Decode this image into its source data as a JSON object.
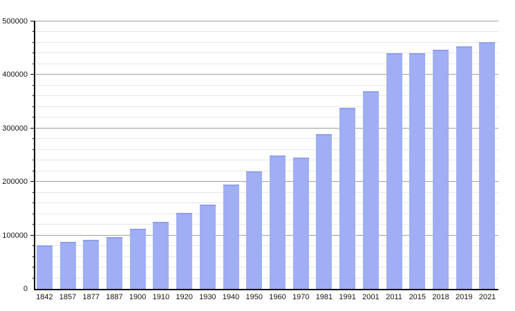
{
  "chart_data": {
    "type": "bar",
    "title": "",
    "xlabel": "",
    "ylabel": "",
    "categories": [
      "1842",
      "1857",
      "1877",
      "1887",
      "1900",
      "1910",
      "1920",
      "1930",
      "1940",
      "1950",
      "1960",
      "1970",
      "1981",
      "1991",
      "2001",
      "2011",
      "2015",
      "2018",
      "2019",
      "2021"
    ],
    "values": [
      82000,
      88000,
      92000,
      97000,
      112000,
      125000,
      142000,
      158000,
      195000,
      220000,
      250000,
      245000,
      289000,
      338000,
      370000,
      441000,
      440000,
      447000,
      453000,
      461000
    ],
    "ylim": [
      0,
      500000
    ],
    "y_major_step": 100000,
    "y_minor_step": 20000,
    "y_tick_labels": [
      "0",
      "100000",
      "200000",
      "300000",
      "400000",
      "500000"
    ],
    "grid": "on",
    "legend": "none",
    "colors": {
      "bar_fill": "#a0aef4",
      "bar_top_edge": "rgba(132,147,226,0.55)",
      "major_gridline": "#9e9e9e",
      "minor_gridline": "#e6e6e6",
      "axis": "#000000",
      "label_text": "#111111",
      "background": "#ffffff"
    }
  }
}
